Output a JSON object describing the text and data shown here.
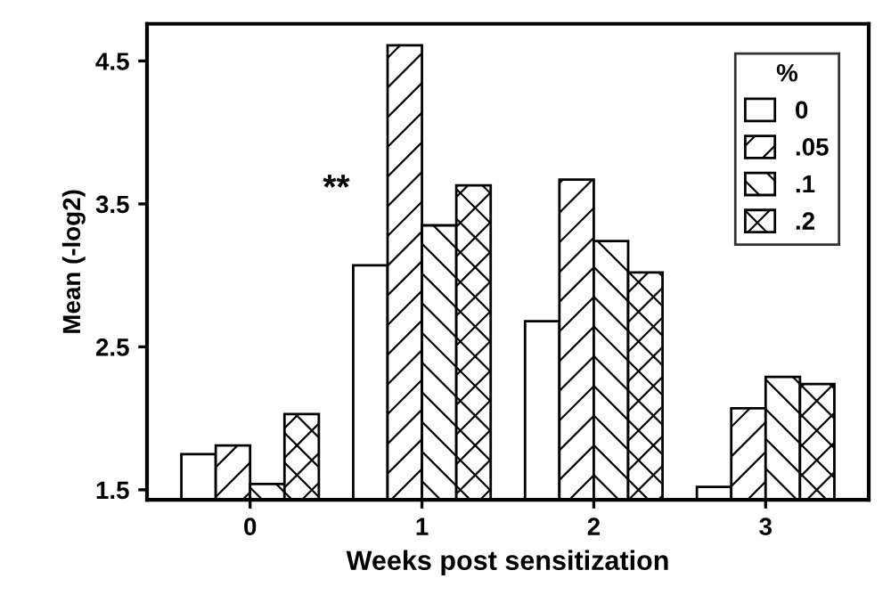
{
  "chart_data": {
    "type": "bar",
    "xlabel": "Weeks post sensitization",
    "ylabel": "Mean (-log2)",
    "legend_title": "%",
    "categories": [
      "0",
      "1",
      "2",
      "3"
    ],
    "series": [
      {
        "name": "0",
        "color": "#ffffff",
        "values": [
          1.75,
          3.07,
          2.68,
          1.52
        ]
      },
      {
        "name": ".05",
        "color": "#000000",
        "values": [
          1.81,
          4.61,
          3.67,
          2.07
        ]
      },
      {
        "name": ".1",
        "color": "#000000",
        "values": [
          1.54,
          3.35,
          3.24,
          2.29
        ]
      },
      {
        "name": ".2",
        "color": "#000000",
        "values": [
          2.03,
          3.63,
          3.02,
          2.24
        ]
      }
    ],
    "ylim": [
      1.43,
      4.76
    ],
    "yticks": [
      1.5,
      2.5,
      3.5,
      4.5
    ],
    "grid": false,
    "legend": "top right",
    "annotations": [
      {
        "text": "**",
        "x": "1",
        "y": 3.6
      }
    ]
  }
}
